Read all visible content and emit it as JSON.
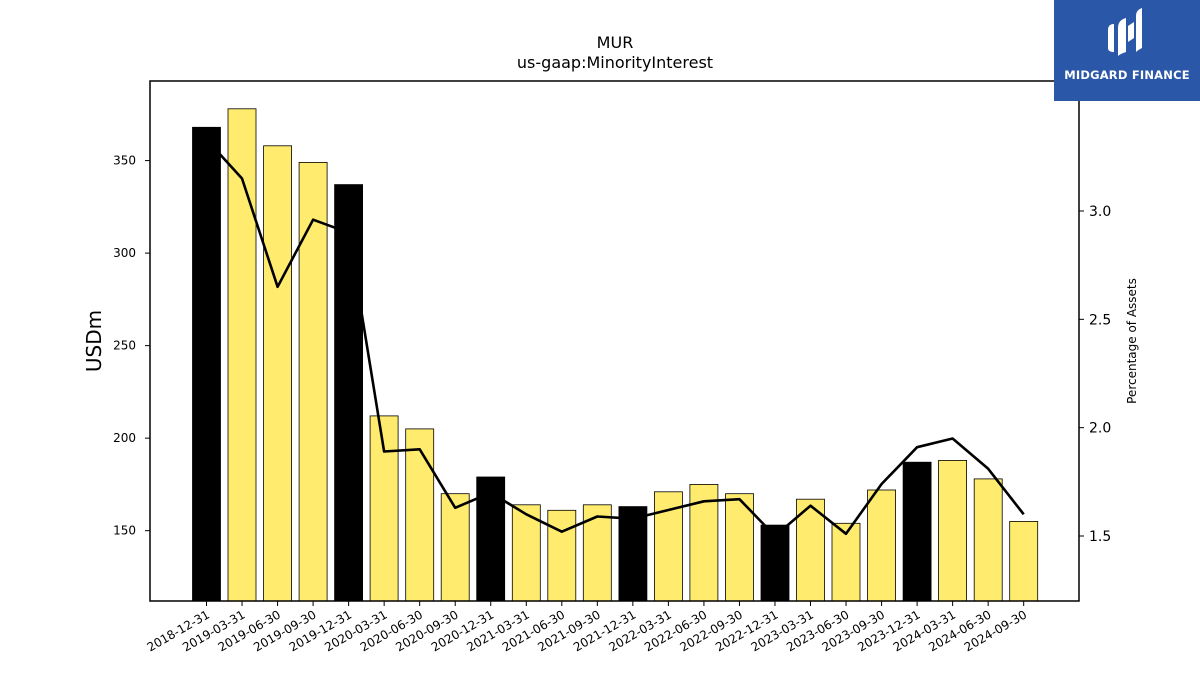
{
  "chart_data": {
    "type": "bar",
    "title": "MUR",
    "subtitle": "us-gaap:MinorityInterest",
    "ylabel": "USDm",
    "y2label": "Percentage of Assets",
    "ylim": [
      112,
      393
    ],
    "y2lim": [
      1.2,
      3.6
    ],
    "yticks": [
      150,
      200,
      250,
      300,
      350
    ],
    "y2ticks": [
      1.5,
      2.0,
      2.5,
      3.0
    ],
    "categories": [
      "2018-12-31",
      "2019-03-31",
      "2019-06-30",
      "2019-09-30",
      "2019-12-31",
      "2020-03-31",
      "2020-06-30",
      "2020-09-30",
      "2020-12-31",
      "2021-03-31",
      "2021-06-30",
      "2021-09-30",
      "2021-12-31",
      "2022-03-31",
      "2022-06-30",
      "2022-09-30",
      "2022-12-31",
      "2023-03-31",
      "2023-06-30",
      "2023-09-30",
      "2023-12-31",
      "2024-03-31",
      "2024-06-30",
      "2024-09-30"
    ],
    "series": [
      {
        "type": "bar",
        "axis": "left",
        "values": [
          368,
          378,
          358,
          349,
          337,
          212,
          205,
          170,
          179,
          164,
          161,
          164,
          163,
          171,
          175,
          170,
          153,
          167,
          154,
          172,
          187,
          188,
          178,
          155
        ],
        "colors": [
          "#000000",
          "#ffec6e",
          "#ffec6e",
          "#ffec6e",
          "#000000",
          "#ffec6e",
          "#ffec6e",
          "#ffec6e",
          "#000000",
          "#ffec6e",
          "#ffec6e",
          "#ffec6e",
          "#000000",
          "#ffec6e",
          "#ffec6e",
          "#ffec6e",
          "#000000",
          "#ffec6e",
          "#ffec6e",
          "#ffec6e",
          "#000000",
          "#ffec6e",
          "#ffec6e",
          "#ffec6e"
        ]
      },
      {
        "type": "line",
        "axis": "right",
        "values": [
          3.33,
          3.15,
          2.65,
          2.96,
          2.9,
          1.89,
          1.9,
          1.63,
          1.7,
          1.6,
          1.52,
          1.59,
          1.58,
          1.62,
          1.66,
          1.67,
          1.5,
          1.64,
          1.51,
          1.74,
          1.91,
          1.95,
          1.81,
          1.6
        ],
        "color": "#000000"
      }
    ],
    "grid": false
  },
  "logo": {
    "text": "MIDGARD FINANCE",
    "bg_color": "#2b57a8"
  }
}
